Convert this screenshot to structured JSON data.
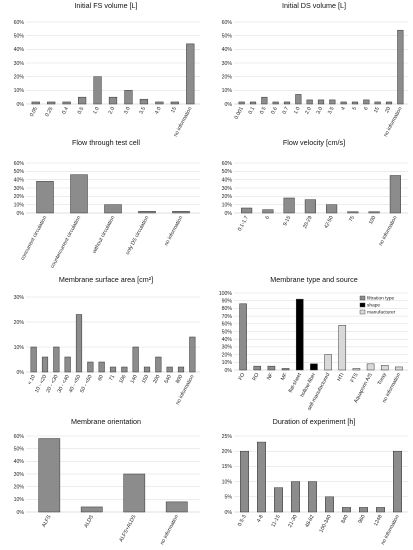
{
  "chart_data": [
    {
      "type": "bar",
      "title": "Initial FS volume [L]",
      "categories": [
        "0.05",
        "0.25",
        "0.4",
        "0.5",
        "1.0",
        "2.0",
        "3.0",
        "3.5",
        "4.0",
        "15",
        "no information"
      ],
      "values": [
        1.5,
        1.5,
        1.5,
        5,
        20,
        5,
        10,
        3.5,
        1.5,
        1.5,
        44
      ],
      "ylim": [
        0,
        60
      ],
      "yticks": [
        "0%",
        "10%",
        "20%",
        "30%",
        "40%",
        "50%",
        "60%"
      ]
    },
    {
      "type": "bar",
      "title": "Initial DS volume [L]",
      "categories": [
        "0.001",
        "0.1",
        "0.5",
        "0.6",
        "0.7",
        "1.0",
        "2.0",
        "3.0",
        "3.5",
        "4",
        "5",
        "6",
        "15",
        "20",
        "no information"
      ],
      "values": [
        1.5,
        1.5,
        5,
        1.5,
        1.5,
        7,
        3,
        3,
        3,
        1.5,
        1.5,
        3,
        1.5,
        1.5,
        54
      ],
      "ylim": [
        0,
        60
      ],
      "yticks": [
        "0%",
        "10%",
        "20%",
        "30%",
        "40%",
        "50%",
        "60%"
      ]
    },
    {
      "type": "bar",
      "title": "Flow through test cell",
      "categories": [
        "concurrent circulation",
        "countercurrent circulation",
        "without circulation",
        "only DS circulation",
        "no information"
      ],
      "values": [
        38,
        46,
        10,
        2,
        2
      ],
      "ylim": [
        0,
        60
      ],
      "yticks": [
        "0%",
        "10%",
        "20%",
        "30%",
        "40%",
        "50%",
        "60%"
      ]
    },
    {
      "type": "bar",
      "title": "Flow velocity [cm/s]",
      "categories": [
        "0.1-1.7",
        "6",
        "9-15",
        "20-29",
        "42-50",
        "75",
        "100",
        "no information"
      ],
      "values": [
        6,
        4,
        18,
        16,
        10,
        1.5,
        1.5,
        45
      ],
      "ylim": [
        0,
        60
      ],
      "yticks": [
        "0%",
        "10%",
        "20%",
        "30%",
        "40%",
        "50%",
        "60%"
      ]
    },
    {
      "type": "bar",
      "title": "Membrane surface area [cm²]",
      "categories": [
        "< 10",
        "10 - <20",
        "20 - <30",
        "30 - <40",
        "40 - <50",
        "50 - <60",
        "60",
        "71",
        "106",
        "140",
        "150",
        "200",
        "540",
        "800",
        "no information"
      ],
      "values": [
        10,
        6,
        10,
        6,
        23,
        4,
        4,
        2,
        2,
        10,
        2,
        6,
        2,
        2,
        14
      ],
      "ylim": [
        0,
        30
      ],
      "yticks": [
        "0%",
        "10%",
        "20%",
        "30%"
      ]
    },
    {
      "type": "bar",
      "title": "Membrane type and source",
      "categories": [
        "FO",
        "RO",
        "NF",
        "MF",
        "flat-sheet",
        "hollow-fiber",
        "self-manufactured",
        "HTI",
        "FTS",
        "Aquaporin A/S",
        "Toray",
        "no information"
      ],
      "values": [
        86,
        5,
        5,
        2,
        92,
        8,
        20,
        58,
        2,
        8,
        6,
        4
      ],
      "groups": [
        "filtration type",
        "filtration type",
        "filtration type",
        "filtration type",
        "shape",
        "shape",
        "manufacturer",
        "manufacturer",
        "manufacturer",
        "manufacturer",
        "manufacturer",
        "manufacturer"
      ],
      "legend": [
        "filtration type",
        "shape",
        "manufacturer"
      ],
      "legend_position": "top-right",
      "colors": {
        "filtration type": "#8c8c8c",
        "shape": "#000000",
        "manufacturer": "#d9d9d9"
      },
      "ylim": [
        0,
        100
      ],
      "yticks": [
        "0%",
        "10%",
        "20%",
        "30%",
        "40%",
        "50%",
        "60%",
        "70%",
        "80%",
        "90%",
        "100%"
      ]
    },
    {
      "type": "bar",
      "title": "Membrane orientation",
      "categories": [
        "ALFS",
        "ALDS",
        "ALFS+ALDS",
        "no information"
      ],
      "values": [
        58,
        4,
        30,
        8
      ],
      "ylim": [
        0,
        60
      ],
      "yticks": [
        "0%",
        "10%",
        "20%",
        "30%",
        "40%",
        "50%",
        "60%"
      ]
    },
    {
      "type": "bar",
      "title": "Duration of experiment [h]",
      "categories": [
        "0.5-3",
        "4-8",
        "11-15",
        "21-30",
        "48-82",
        "100-340",
        "840",
        "960",
        "1248",
        "no information"
      ],
      "values": [
        20,
        23,
        8,
        10,
        10,
        5,
        1.5,
        1.5,
        1.5,
        20
      ],
      "ylim": [
        0,
        25
      ],
      "yticks": [
        "0%",
        "5%",
        "10%",
        "15%",
        "20%",
        "25%"
      ]
    }
  ],
  "bar_color": "#8c8c8c"
}
